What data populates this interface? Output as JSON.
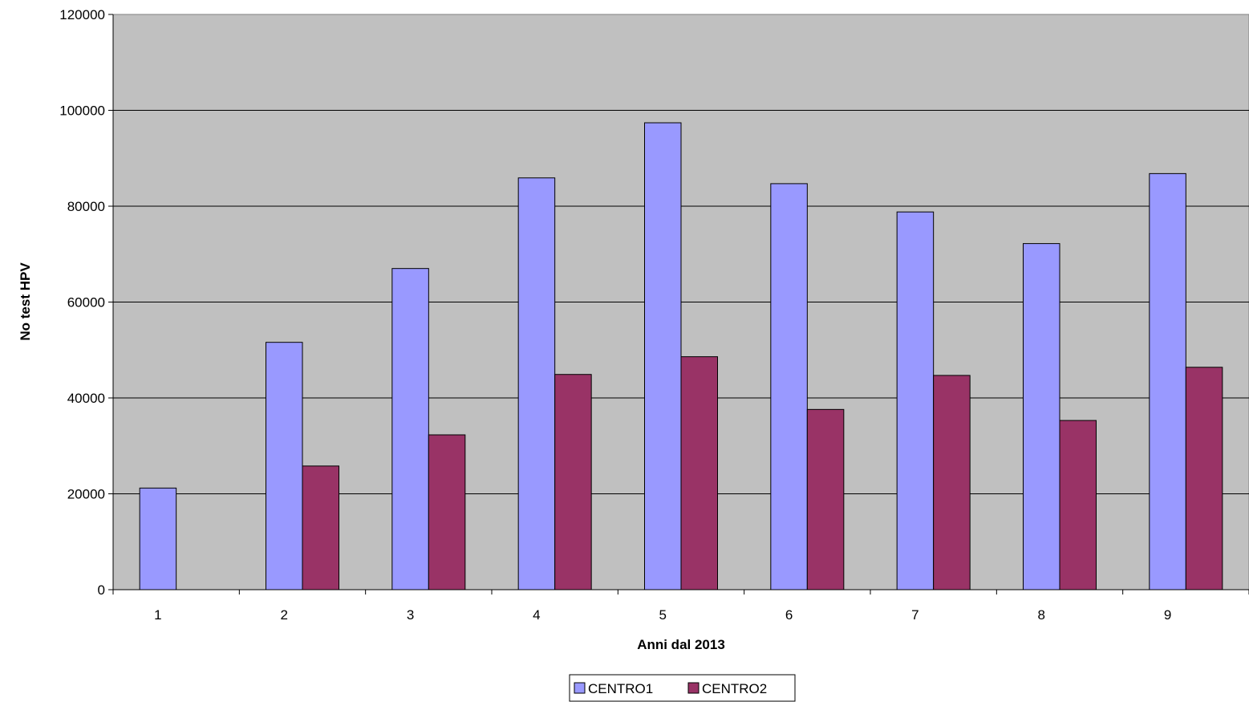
{
  "chart_data": {
    "type": "bar",
    "categories": [
      "1",
      "2",
      "3",
      "4",
      "5",
      "6",
      "7",
      "8",
      "9"
    ],
    "series": [
      {
        "name": "CENTRO1",
        "color": "#9999ff",
        "values": [
          21200,
          51600,
          67000,
          85900,
          97400,
          84700,
          78800,
          72200,
          86800
        ]
      },
      {
        "name": "CENTRO2",
        "color": "#993366",
        "values": [
          null,
          25800,
          32300,
          44900,
          48600,
          37600,
          44700,
          35300,
          46400
        ]
      }
    ],
    "title": "",
    "xlabel": "Anni dal 2013",
    "ylabel": "No test HPV",
    "ylim": [
      0,
      120000
    ],
    "yticks": [
      "0",
      "20000",
      "40000",
      "60000",
      "80000",
      "100000",
      "120000"
    ],
    "grid": true,
    "plot_background": "#c0c0c0",
    "legend_position": "bottom"
  }
}
